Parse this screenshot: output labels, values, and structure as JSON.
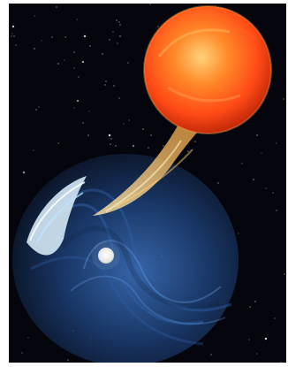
{
  "image": {
    "subject": "illustration",
    "colors": {
      "space": "#05060d",
      "star_core": "#ff5a1f",
      "star_glow": "#ffb14a",
      "stream": "#ffd27a",
      "disk": "#1b3b6f",
      "disk_glow": "#2f5fa6",
      "arc": "#dff3ff",
      "compact_object": "#f2f2f2"
    },
    "elements": [
      "starfield",
      "giant-star",
      "accretion-stream",
      "magnetic-field-disk",
      "bright-arc",
      "compact-object"
    ]
  }
}
